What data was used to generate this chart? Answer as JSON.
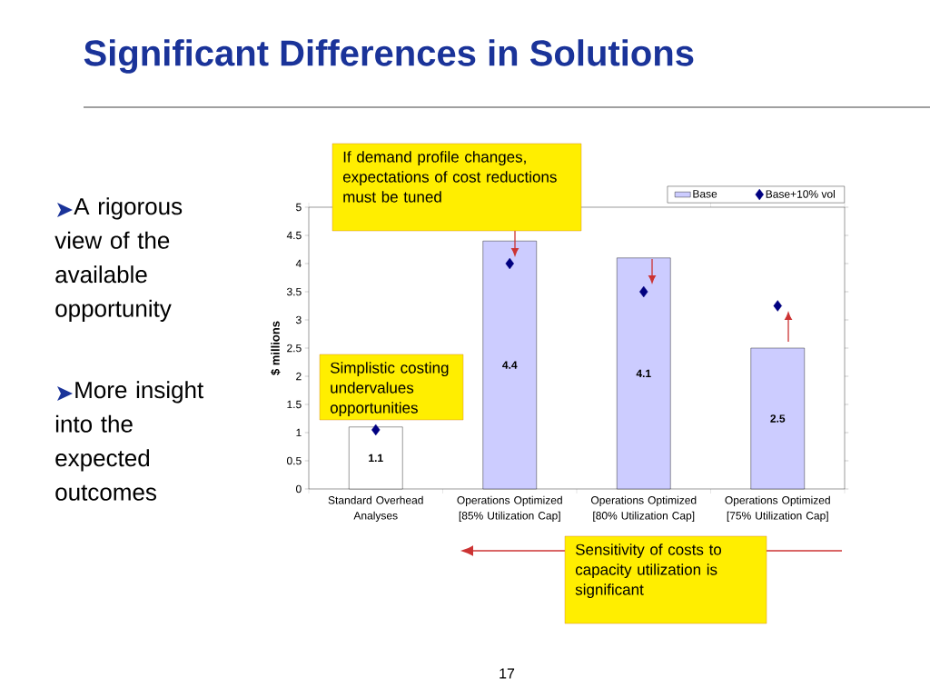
{
  "chart_data": {
    "type": "bar",
    "title": "Significant Differences in Solutions",
    "ylabel": "$ millions",
    "categories": [
      "Standard Overhead Analyses",
      "Operations Optimized [85% Utilization Cap]",
      "Operations Optimized [80% Utilization Cap]",
      "Operations Optimized [75% Utilization Cap]"
    ],
    "series": [
      {
        "name": "Base",
        "color": "#ccccff",
        "colors": [
          "#ffffff",
          "#ccccff",
          "#ccccff",
          "#ccccff"
        ],
        "values": [
          1.1,
          4.4,
          4.1,
          2.5
        ],
        "value_labels": [
          "1.1",
          "4.4",
          "4.1",
          "2.5"
        ]
      },
      {
        "name": "Base+10% vol",
        "type": "scatter",
        "color": "#000080",
        "marker": "diamond",
        "values": [
          1.05,
          4.0,
          3.5,
          3.25
        ]
      }
    ],
    "ylim": [
      0,
      5
    ],
    "yticks": [
      0,
      0.5,
      1,
      1.5,
      2,
      2.5,
      3,
      3.5,
      4,
      4.5,
      5
    ],
    "legend": "top right",
    "annotations": [
      "A rigorous view of the available opportunity",
      "More insight into the expected outcomes",
      "If demand profile changes, expectations of cost reductions must be tuned",
      "Simplistic costing undervalues opportunities",
      "Sensitivity of costs to capacity utilization is significant",
      "17"
    ]
  }
}
